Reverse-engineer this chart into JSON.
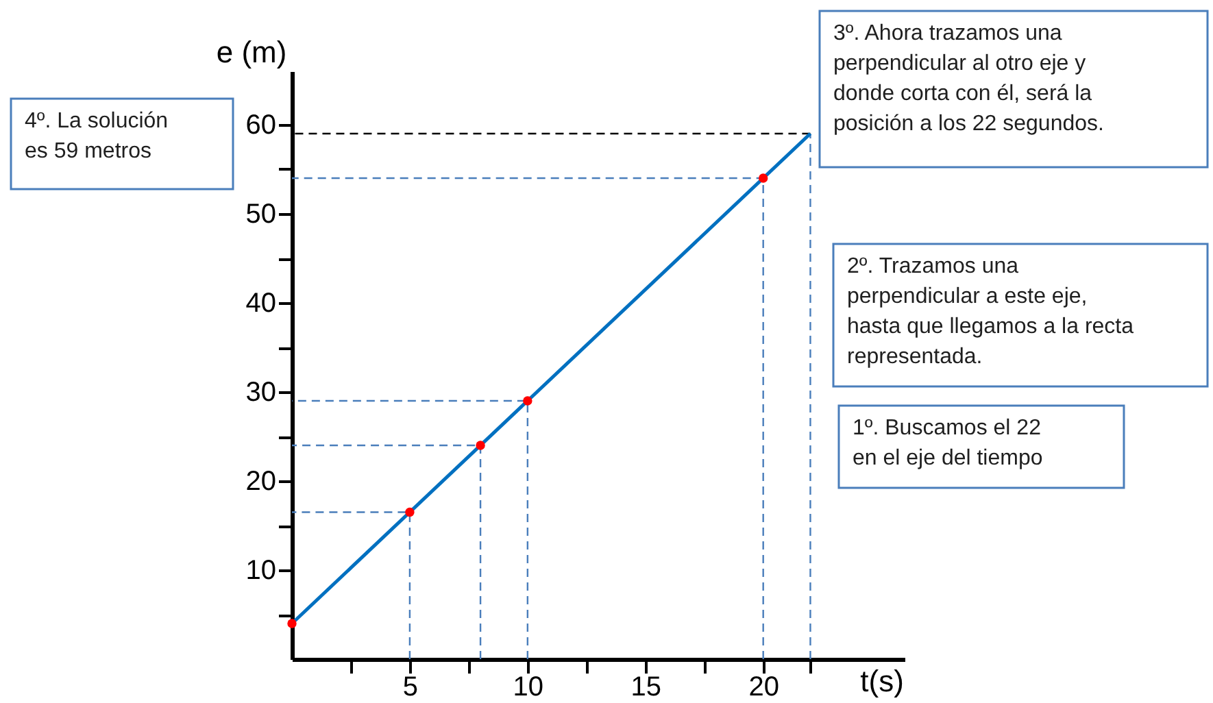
{
  "chart_data": {
    "type": "line",
    "xlabel": "t(s)",
    "ylabel": "e (m)",
    "xlim": [
      0,
      26
    ],
    "ylim": [
      0,
      66
    ],
    "xticks": [
      {
        "value": 2.5,
        "label": null
      },
      5,
      {
        "value": 7.5,
        "label": null
      },
      10,
      {
        "value": 12.5,
        "label": null
      },
      15,
      {
        "value": 17.5,
        "label": null
      },
      20,
      {
        "value": 22,
        "label": null
      }
    ],
    "yticks": [
      {
        "value": 5,
        "label": null
      },
      10,
      {
        "value": 15,
        "label": null
      },
      20,
      {
        "value": 25,
        "label": null
      },
      30,
      {
        "value": 35,
        "label": null
      },
      40,
      {
        "value": 45,
        "label": null
      },
      50,
      {
        "value": 55,
        "label": null
      },
      60
    ],
    "grid": false,
    "series": [
      {
        "color": "#4a7ebb",
        "line_style": "dashed",
        "x": [
          5,
          5,
          0
        ],
        "values": [
          0,
          16.5,
          16.5
        ]
      },
      {
        "color": "#4a7ebb",
        "line_style": "dashed",
        "x": [
          8,
          8,
          0
        ],
        "values": [
          0,
          24,
          24
        ]
      },
      {
        "color": "#4a7ebb",
        "line_style": "dashed",
        "x": [
          10,
          10,
          0
        ],
        "values": [
          0,
          29,
          29
        ]
      },
      {
        "color": "#4a7ebb",
        "line_style": "dashed",
        "x": [
          20,
          20,
          0
        ],
        "values": [
          0,
          54,
          54
        ]
      },
      {
        "color": "#4a7ebb",
        "line_style": "dashed",
        "x": [
          22,
          22
        ],
        "values": [
          0,
          59
        ]
      },
      {
        "color": "#000000",
        "line_style": "dashed",
        "x": [
          22,
          0
        ],
        "values": [
          59,
          59
        ]
      },
      {
        "color": "#0070c0",
        "line_style": "solid",
        "x": [
          0,
          22
        ],
        "values": [
          4,
          59
        ]
      },
      {
        "type": "scatter",
        "color": "#ff0000",
        "marker": "circle",
        "x": [
          0,
          5,
          8,
          10,
          20
        ],
        "values": [
          4,
          16.5,
          24,
          29,
          54
        ]
      }
    ],
    "annotations": [
      "4º. La solución\nes 59 metros",
      "3º. Ahora trazamos una\nperpendicular al otro eje y\ndonde corta con él, será la\nposición a los 22 segundos.",
      "2º. Trazamos una\nperpendicular  a este eje,\nhasta que llegamos a la recta\nrepresentada.",
      "1º. Buscamos el 22\nen el eje del tiempo"
    ]
  }
}
